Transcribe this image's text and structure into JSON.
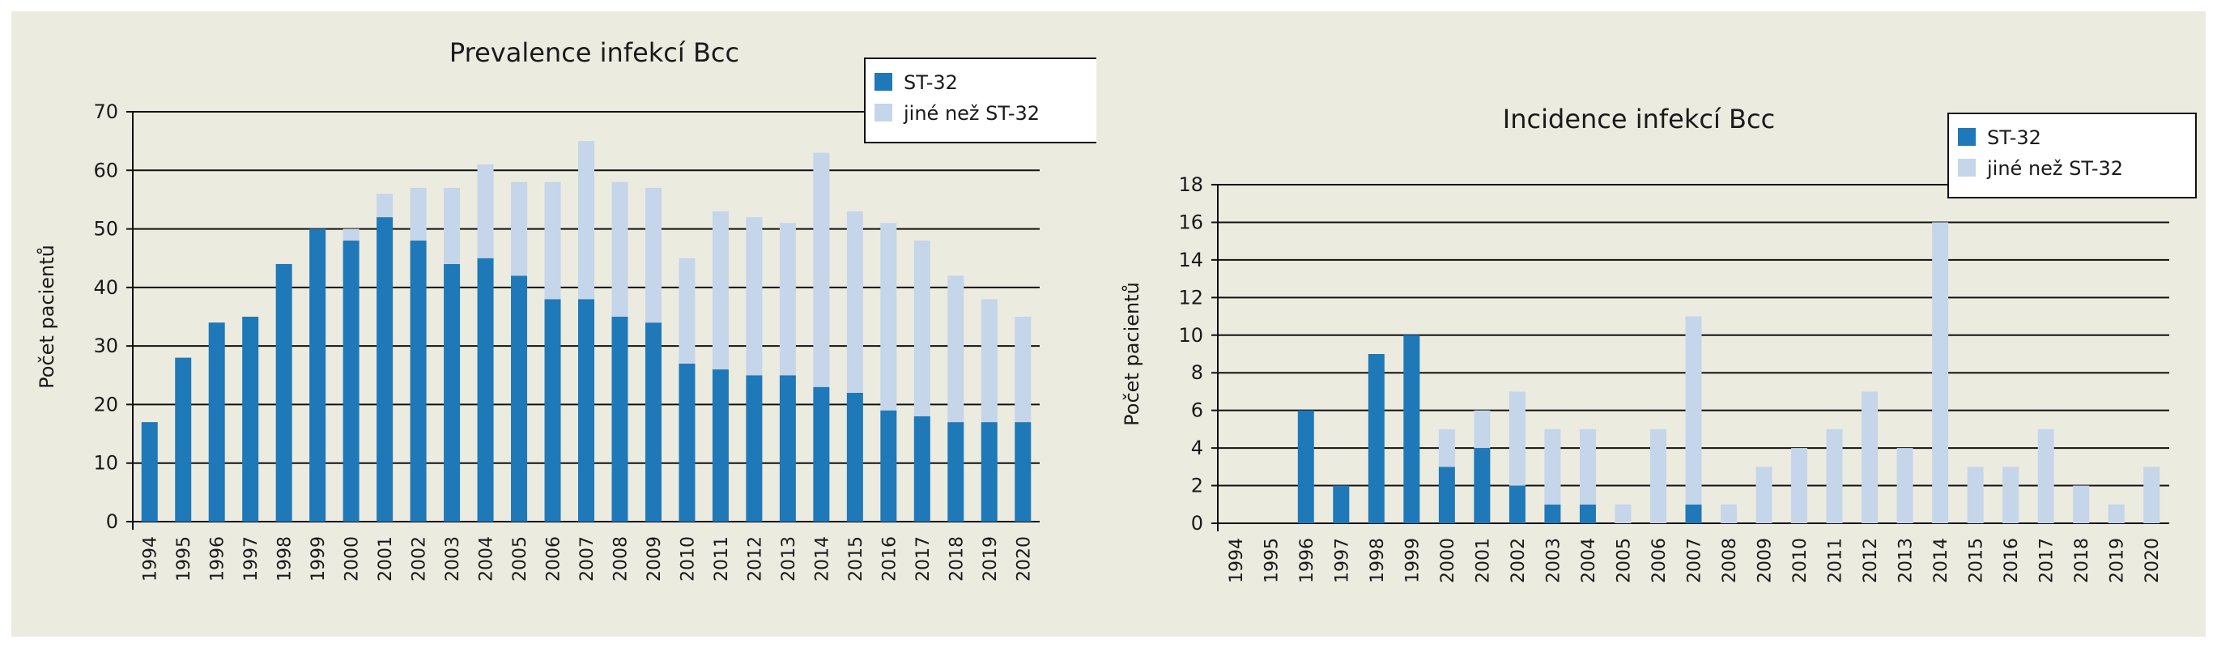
{
  "colors": {
    "st32": "#1f78b8",
    "other": "#c5d5ea",
    "gridline": "#111111",
    "background": "#ecebe0"
  },
  "chart_data": [
    {
      "type": "bar",
      "stacked": true,
      "title": "Prevalence infekcí Bcc",
      "xlabel": "",
      "ylabel": "Počet pacientů",
      "ylim": [
        0,
        70
      ],
      "yticks": [
        "0",
        "10",
        "20",
        "30",
        "40",
        "50",
        "60",
        "70"
      ],
      "grid": true,
      "legend_position": "top-right",
      "categories": [
        "1994",
        "1995",
        "1996",
        "1997",
        "1998",
        "1999",
        "2000",
        "2001",
        "2002",
        "2003",
        "2004",
        "2005",
        "2006",
        "2007",
        "2008",
        "2009",
        "2010",
        "2011",
        "2012",
        "2013",
        "2014",
        "2015",
        "2016",
        "2017",
        "2018",
        "2019",
        "2020"
      ],
      "series": [
        {
          "name": "ST-32",
          "values": [
            17,
            28,
            34,
            35,
            44,
            50,
            48,
            52,
            48,
            44,
            45,
            42,
            38,
            38,
            35,
            34,
            27,
            26,
            25,
            25,
            23,
            22,
            19,
            18,
            17,
            17,
            17
          ]
        },
        {
          "name": "jiné než ST-32",
          "values": [
            0,
            0,
            0,
            0,
            0,
            0,
            2,
            4,
            9,
            13,
            16,
            16,
            20,
            27,
            23,
            23,
            18,
            27,
            27,
            26,
            40,
            31,
            32,
            30,
            25,
            21,
            18
          ]
        }
      ]
    },
    {
      "type": "bar",
      "stacked": true,
      "title": "Incidence infekcí Bcc",
      "xlabel": "",
      "ylabel": "Počet pacientů",
      "ylim": [
        0,
        18
      ],
      "yticks": [
        "0",
        "2",
        "4",
        "6",
        "8",
        "10",
        "12",
        "14",
        "16",
        "18"
      ],
      "grid": true,
      "legend_position": "top-right",
      "categories": [
        "1994",
        "1995",
        "1996",
        "1997",
        "1998",
        "1999",
        "2000",
        "2001",
        "2002",
        "2003",
        "2004",
        "2005",
        "2006",
        "2007",
        "2008",
        "2009",
        "2010",
        "2011",
        "2012",
        "2013",
        "2014",
        "2015",
        "2016",
        "2017",
        "2018",
        "2019",
        "2020"
      ],
      "series": [
        {
          "name": "ST-32",
          "values": [
            0,
            0,
            6,
            2,
            9,
            10,
            3,
            4,
            2,
            1,
            1,
            0,
            0,
            1,
            0,
            0,
            0,
            0,
            0,
            0,
            0,
            0,
            0,
            0,
            0,
            0,
            0
          ]
        },
        {
          "name": "jiné než ST-32",
          "values": [
            0,
            0,
            0,
            0,
            0,
            0,
            2,
            2,
            5,
            4,
            4,
            1,
            5,
            10,
            1,
            3,
            4,
            5,
            7,
            4,
            16,
            3,
            3,
            5,
            2,
            1,
            3
          ]
        }
      ]
    }
  ]
}
